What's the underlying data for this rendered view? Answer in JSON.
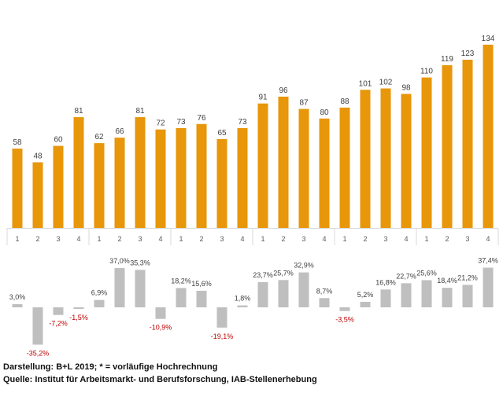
{
  "chart_data": [
    {
      "type": "bar",
      "categories": [
        "1",
        "2",
        "3",
        "4",
        "1",
        "2",
        "3",
        "4",
        "1",
        "2",
        "3",
        "4",
        "1",
        "2",
        "3",
        "4",
        "1",
        "2",
        "3",
        "4",
        "1",
        "2",
        "3",
        "4"
      ],
      "values": [
        58,
        48,
        60,
        81,
        62,
        66,
        81,
        72,
        73,
        76,
        65,
        73,
        91,
        96,
        87,
        80,
        88,
        101,
        102,
        98,
        110,
        119,
        123,
        134
      ],
      "color": "#E8960A",
      "grid": false
    },
    {
      "type": "bar",
      "values": [
        3.0,
        -35.2,
        -7.2,
        -1.5,
        6.9,
        37.0,
        35.3,
        -10.9,
        18.2,
        15.6,
        -19.1,
        1.8,
        23.7,
        25.7,
        32.9,
        8.7,
        -3.5,
        5.2,
        16.8,
        22.7,
        25.6,
        18.4,
        21.2,
        37.4
      ],
      "labels": [
        "3,0%",
        "-35,2%",
        "-7,2%",
        "-1,5%",
        "6,9%",
        "37,0%",
        "35,3%",
        "-10,9%",
        "18,2%",
        "15,6%",
        "-19,1%",
        "1,8%",
        "23,7%",
        "25,7%",
        "32,9%",
        "8,7%",
        "-3,5%",
        "5,2%",
        "16,8%",
        "22,7%",
        "25,6%",
        "18,4%",
        "21,2%",
        "37,4%"
      ],
      "color": "#BFBFBF",
      "negative_label_color": "#C00000",
      "grid": false
    }
  ],
  "footer": {
    "line1": "Darstellung: B+L 2019; * = vorläufige Hochrechnung",
    "line2": "Quelle: Institut für Arbeitsmarkt- und Berufsforschung, IAB-Stellenerhebung"
  }
}
